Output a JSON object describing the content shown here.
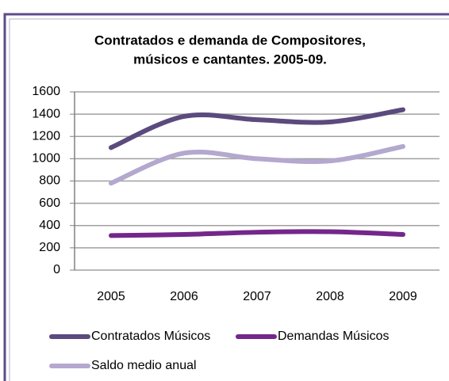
{
  "chart_data": {
    "type": "line",
    "title": [
      "Contratados e demanda de Compositores,",
      "músicos e cantantes. 2005-09."
    ],
    "categories": [
      "2005",
      "2006",
      "2007",
      "2008",
      "2009"
    ],
    "series": [
      {
        "name": "Contratados Músicos",
        "color": "#5b4a7d",
        "values": [
          1100,
          1380,
          1350,
          1330,
          1440
        ]
      },
      {
        "name": "Demandas Músicos",
        "color": "#74278a",
        "values": [
          310,
          320,
          340,
          345,
          320
        ]
      },
      {
        "name": "Saldo medio anual",
        "color": "#b4a8cf",
        "values": [
          780,
          1050,
          1000,
          980,
          1110
        ]
      }
    ],
    "ylim": [
      0,
      1600
    ],
    "yticks": [
      0,
      200,
      400,
      600,
      800,
      1000,
      1200,
      1400,
      1600
    ],
    "grid": true,
    "legend": "bottom"
  }
}
